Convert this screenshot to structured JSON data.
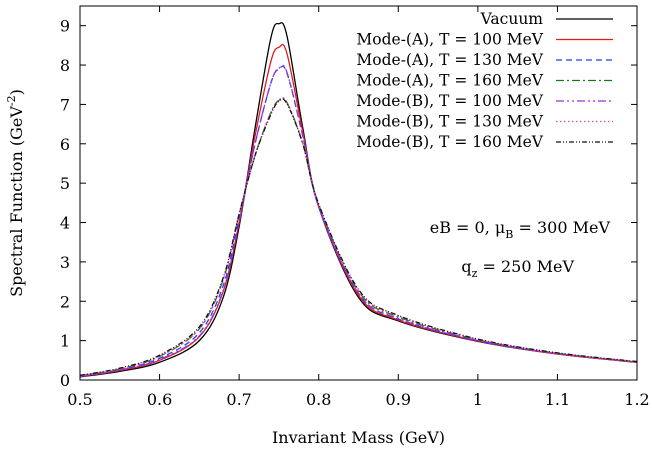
{
  "chart_data": {
    "type": "line",
    "title": "",
    "xlabel": "Invariant Mass (GeV)",
    "ylabel_main": "Spectral Function (GeV",
    "ylabel_sup": "-2",
    "ylabel_close": ")",
    "xlim": [
      0.5,
      1.2
    ],
    "ylim": [
      0,
      9.5
    ],
    "xticks": [
      "0.5",
      "0.6",
      "0.7",
      "0.8",
      "0.9",
      "1",
      "1.1",
      "1.2"
    ],
    "yticks": [
      "0",
      "1",
      "2",
      "3",
      "4",
      "5",
      "6",
      "7",
      "8",
      "9"
    ],
    "grid": false,
    "legend_position": "top-right",
    "annotations": {
      "line1_a": "eB = 0, μ",
      "line1_sub": "B",
      "line1_b": " = 300 MeV",
      "line2_a": "q",
      "line2_sub": "z",
      "line2_b": " = 250 MeV"
    },
    "x": [
      0.5,
      0.55,
      0.6,
      0.65,
      0.68,
      0.7,
      0.72,
      0.74,
      0.75,
      0.76,
      0.78,
      0.8,
      0.85,
      0.9,
      1.0,
      1.1,
      1.2
    ],
    "series": [
      {
        "name": "Vacuum",
        "color": "#000000",
        "dash": "",
        "values": [
          0.08,
          0.22,
          0.45,
          1.0,
          2.1,
          3.9,
          6.4,
          8.7,
          9.05,
          8.75,
          6.4,
          4.4,
          2.1,
          1.5,
          0.98,
          0.66,
          0.45
        ]
      },
      {
        "name": "Mode-(A), T = 100 MeV",
        "color": "#e31a1c",
        "dash": "",
        "values": [
          0.09,
          0.24,
          0.5,
          1.1,
          2.25,
          4.0,
          6.2,
          8.1,
          8.45,
          8.3,
          6.3,
          4.4,
          2.15,
          1.52,
          0.99,
          0.66,
          0.45
        ]
      },
      {
        "name": "Mode-(A), T = 130 MeV",
        "color": "#1f3fff",
        "dash": "6,4",
        "values": [
          0.1,
          0.26,
          0.55,
          1.2,
          2.4,
          4.1,
          6.0,
          7.55,
          7.9,
          7.8,
          6.2,
          4.4,
          2.2,
          1.55,
          1.0,
          0.67,
          0.46
        ]
      },
      {
        "name": "Mode-(A), T = 160 MeV",
        "color": "#1b7a1b",
        "dash": "8,3,2,3",
        "values": [
          0.11,
          0.28,
          0.6,
          1.3,
          2.55,
          4.2,
          5.7,
          6.8,
          7.1,
          7.05,
          6.0,
          4.45,
          2.25,
          1.6,
          1.02,
          0.68,
          0.46
        ]
      },
      {
        "name": "Mode-(B), T = 100 MeV",
        "color": "#9b30d9",
        "dash": "8,3,2,3,2,3",
        "values": [
          0.09,
          0.25,
          0.52,
          1.12,
          2.28,
          4.0,
          6.0,
          7.55,
          7.92,
          7.82,
          6.2,
          4.42,
          2.2,
          1.56,
          1.0,
          0.67,
          0.46
        ]
      },
      {
        "name": "Mode-(B), T = 130 MeV",
        "color": "#ff3bb0",
        "dash": "1.5,2.5",
        "values": [
          0.11,
          0.28,
          0.6,
          1.3,
          2.55,
          4.2,
          5.72,
          6.8,
          7.12,
          7.06,
          6.02,
          4.46,
          2.28,
          1.62,
          1.03,
          0.68,
          0.46
        ]
      },
      {
        "name": "Mode-(B), T = 160 MeV",
        "color": "#111111",
        "dash": "5,2,1,2,1,2",
        "values": [
          0.12,
          0.3,
          0.63,
          1.35,
          2.6,
          4.22,
          5.7,
          6.75,
          7.08,
          7.02,
          6.0,
          4.47,
          2.3,
          1.64,
          1.04,
          0.69,
          0.47
        ]
      }
    ]
  }
}
